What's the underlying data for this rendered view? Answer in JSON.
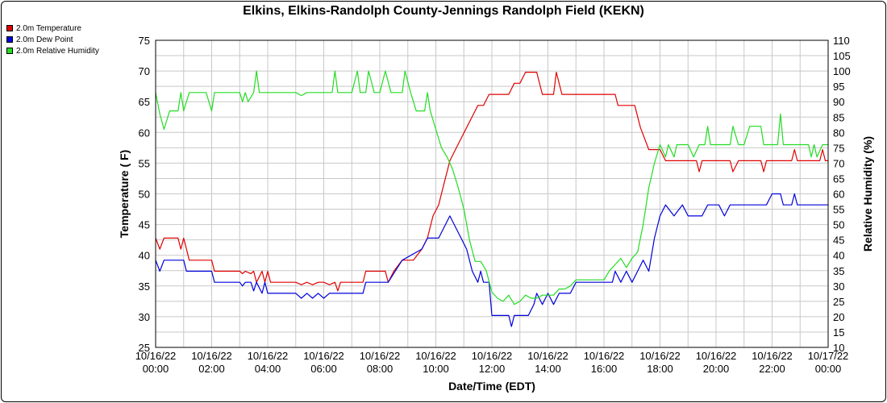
{
  "chart_data": {
    "type": "line",
    "title": "Elkins, Elkins-Randolph County-Jennings Randolph Field (KEKN)",
    "xlabel": "Date/Time (EDT)",
    "ylabel_left": "Temperature ( F)",
    "ylabel_right": "Relative Humidity (%)",
    "ylim_left": [
      25,
      75
    ],
    "ylim_right": [
      10,
      110
    ],
    "xlim_hours": [
      0,
      24
    ],
    "grid": true,
    "legend_position": "top-left",
    "left_ticks": [
      "25",
      "30",
      "35",
      "40",
      "45",
      "50",
      "55",
      "60",
      "65",
      "70",
      "75"
    ],
    "right_ticks": [
      "10",
      "15",
      "20",
      "25",
      "30",
      "35",
      "40",
      "45",
      "50",
      "55",
      "60",
      "65",
      "70",
      "75",
      "80",
      "85",
      "90",
      "95",
      "100",
      "105",
      "110"
    ],
    "x_ticks": [
      {
        "date": "10/16/22",
        "time": "00:00"
      },
      {
        "date": "10/16/22",
        "time": "02:00"
      },
      {
        "date": "10/16/22",
        "time": "04:00"
      },
      {
        "date": "10/16/22",
        "time": "06:00"
      },
      {
        "date": "10/16/22",
        "time": "08:00"
      },
      {
        "date": "10/16/22",
        "time": "10:00"
      },
      {
        "date": "10/16/22",
        "time": "12:00"
      },
      {
        "date": "10/16/22",
        "time": "14:00"
      },
      {
        "date": "10/16/22",
        "time": "16:00"
      },
      {
        "date": "10/16/22",
        "time": "18:00"
      },
      {
        "date": "10/16/22",
        "time": "20:00"
      },
      {
        "date": "10/16/22",
        "time": "22:00"
      },
      {
        "date": "10/17/22",
        "time": "00:00"
      }
    ],
    "series": [
      {
        "name": "2.0m Temperature",
        "color": "#e00000",
        "axis": "left",
        "points": [
          [
            0.0,
            42.8
          ],
          [
            0.15,
            41.0
          ],
          [
            0.3,
            42.8
          ],
          [
            0.8,
            42.8
          ],
          [
            0.9,
            41.0
          ],
          [
            1.0,
            42.8
          ],
          [
            1.2,
            39.2
          ],
          [
            2.0,
            39.2
          ],
          [
            2.1,
            37.4
          ],
          [
            3.0,
            37.4
          ],
          [
            3.1,
            37.0
          ],
          [
            3.2,
            37.4
          ],
          [
            3.4,
            37.0
          ],
          [
            3.5,
            37.4
          ],
          [
            3.6,
            35.6
          ],
          [
            3.8,
            37.4
          ],
          [
            3.9,
            35.6
          ],
          [
            4.0,
            37.4
          ],
          [
            4.1,
            35.6
          ],
          [
            5.0,
            35.6
          ],
          [
            5.2,
            35.2
          ],
          [
            5.4,
            35.6
          ],
          [
            5.6,
            35.2
          ],
          [
            5.8,
            35.6
          ],
          [
            6.0,
            35.6
          ],
          [
            6.2,
            35.2
          ],
          [
            6.4,
            35.6
          ],
          [
            6.5,
            34.2
          ],
          [
            6.6,
            35.6
          ],
          [
            7.4,
            35.6
          ],
          [
            7.5,
            37.4
          ],
          [
            8.2,
            37.4
          ],
          [
            8.3,
            35.6
          ],
          [
            8.5,
            37.4
          ],
          [
            8.8,
            39.2
          ],
          [
            9.2,
            39.2
          ],
          [
            9.5,
            41.0
          ],
          [
            9.7,
            42.8
          ],
          [
            9.9,
            46.4
          ],
          [
            10.1,
            48.2
          ],
          [
            10.3,
            51.8
          ],
          [
            10.5,
            55.4
          ],
          [
            10.7,
            57.2
          ],
          [
            10.9,
            59.0
          ],
          [
            11.1,
            60.8
          ],
          [
            11.3,
            62.6
          ],
          [
            11.5,
            64.4
          ],
          [
            11.7,
            64.4
          ],
          [
            11.9,
            66.2
          ],
          [
            12.6,
            66.2
          ],
          [
            12.8,
            68.0
          ],
          [
            13.0,
            68.0
          ],
          [
            13.2,
            69.8
          ],
          [
            13.6,
            69.8
          ],
          [
            13.8,
            66.2
          ],
          [
            14.2,
            66.2
          ],
          [
            14.3,
            69.8
          ],
          [
            14.5,
            66.2
          ],
          [
            16.4,
            66.2
          ],
          [
            16.5,
            64.4
          ],
          [
            17.1,
            64.4
          ],
          [
            17.3,
            60.8
          ],
          [
            17.6,
            57.2
          ],
          [
            18.0,
            57.2
          ],
          [
            18.2,
            55.4
          ],
          [
            19.3,
            55.4
          ],
          [
            19.4,
            53.6
          ],
          [
            19.5,
            55.4
          ],
          [
            20.1,
            55.4
          ],
          [
            20.5,
            55.4
          ],
          [
            20.6,
            53.6
          ],
          [
            20.8,
            55.4
          ],
          [
            21.6,
            55.4
          ],
          [
            21.7,
            53.6
          ],
          [
            21.8,
            55.4
          ],
          [
            22.7,
            55.4
          ],
          [
            22.8,
            57.2
          ],
          [
            22.9,
            55.4
          ],
          [
            23.7,
            55.4
          ],
          [
            23.8,
            57.2
          ],
          [
            23.9,
            55.4
          ],
          [
            24.0,
            55.4
          ]
        ]
      },
      {
        "name": "2.0m Dew Point",
        "color": "#0000dd",
        "axis": "left",
        "points": [
          [
            0.0,
            39.2
          ],
          [
            0.15,
            37.4
          ],
          [
            0.3,
            39.2
          ],
          [
            1.0,
            39.2
          ],
          [
            1.1,
            37.4
          ],
          [
            2.0,
            37.4
          ],
          [
            2.1,
            35.6
          ],
          [
            3.0,
            35.6
          ],
          [
            3.1,
            35.0
          ],
          [
            3.2,
            35.6
          ],
          [
            3.4,
            35.6
          ],
          [
            3.5,
            34.2
          ],
          [
            3.6,
            35.6
          ],
          [
            3.8,
            33.8
          ],
          [
            3.9,
            35.6
          ],
          [
            4.0,
            33.8
          ],
          [
            5.0,
            33.8
          ],
          [
            5.2,
            33.0
          ],
          [
            5.4,
            33.8
          ],
          [
            5.6,
            33.0
          ],
          [
            5.8,
            33.8
          ],
          [
            6.0,
            33.0
          ],
          [
            6.2,
            33.8
          ],
          [
            7.4,
            33.8
          ],
          [
            7.5,
            35.6
          ],
          [
            8.3,
            35.6
          ],
          [
            8.8,
            39.2
          ],
          [
            9.5,
            41.0
          ],
          [
            9.7,
            42.8
          ],
          [
            10.1,
            42.8
          ],
          [
            10.3,
            44.6
          ],
          [
            10.5,
            46.4
          ],
          [
            10.7,
            44.6
          ],
          [
            10.9,
            42.8
          ],
          [
            11.1,
            41.0
          ],
          [
            11.3,
            37.4
          ],
          [
            11.5,
            35.6
          ],
          [
            11.6,
            37.4
          ],
          [
            11.7,
            35.6
          ],
          [
            11.9,
            35.6
          ],
          [
            12.0,
            30.2
          ],
          [
            12.6,
            30.2
          ],
          [
            12.7,
            28.4
          ],
          [
            12.8,
            30.2
          ],
          [
            13.3,
            30.2
          ],
          [
            13.5,
            32.0
          ],
          [
            13.6,
            33.8
          ],
          [
            13.8,
            32.0
          ],
          [
            14.0,
            33.8
          ],
          [
            14.2,
            32.0
          ],
          [
            14.4,
            33.8
          ],
          [
            14.8,
            33.8
          ],
          [
            15.0,
            35.6
          ],
          [
            16.3,
            35.6
          ],
          [
            16.4,
            37.4
          ],
          [
            16.6,
            35.6
          ],
          [
            16.8,
            37.4
          ],
          [
            17.0,
            35.6
          ],
          [
            17.2,
            37.4
          ],
          [
            17.4,
            39.2
          ],
          [
            17.6,
            37.4
          ],
          [
            17.8,
            42.8
          ],
          [
            18.0,
            46.4
          ],
          [
            18.2,
            48.2
          ],
          [
            18.5,
            46.4
          ],
          [
            18.8,
            48.2
          ],
          [
            19.0,
            46.4
          ],
          [
            19.5,
            46.4
          ],
          [
            19.7,
            48.2
          ],
          [
            20.1,
            48.2
          ],
          [
            20.3,
            46.4
          ],
          [
            20.5,
            48.2
          ],
          [
            21.8,
            48.2
          ],
          [
            22.0,
            50.0
          ],
          [
            22.3,
            50.0
          ],
          [
            22.4,
            48.2
          ],
          [
            22.7,
            48.2
          ],
          [
            22.8,
            50.0
          ],
          [
            22.9,
            48.2
          ],
          [
            24.0,
            48.2
          ]
        ]
      },
      {
        "name": "2.0m Relative Humidity",
        "color": "#22dd22",
        "axis": "right",
        "points": [
          [
            0.0,
            93
          ],
          [
            0.15,
            86
          ],
          [
            0.3,
            81
          ],
          [
            0.5,
            87
          ],
          [
            0.8,
            87
          ],
          [
            0.9,
            93
          ],
          [
            1.0,
            87
          ],
          [
            1.2,
            93
          ],
          [
            1.8,
            93
          ],
          [
            2.0,
            87
          ],
          [
            2.1,
            93
          ],
          [
            3.0,
            93
          ],
          [
            3.1,
            90
          ],
          [
            3.2,
            93
          ],
          [
            3.3,
            90
          ],
          [
            3.5,
            93
          ],
          [
            3.6,
            100
          ],
          [
            3.7,
            93
          ],
          [
            4.2,
            93
          ],
          [
            5.0,
            93
          ],
          [
            5.2,
            92
          ],
          [
            5.4,
            93
          ],
          [
            6.3,
            93
          ],
          [
            6.4,
            100
          ],
          [
            6.5,
            93
          ],
          [
            7.0,
            93
          ],
          [
            7.2,
            100
          ],
          [
            7.3,
            93
          ],
          [
            7.5,
            93
          ],
          [
            7.6,
            100
          ],
          [
            7.8,
            93
          ],
          [
            8.0,
            93
          ],
          [
            8.2,
            100
          ],
          [
            8.4,
            93
          ],
          [
            8.8,
            93
          ],
          [
            8.9,
            100
          ],
          [
            9.1,
            93
          ],
          [
            9.3,
            87
          ],
          [
            9.6,
            87
          ],
          [
            9.7,
            93
          ],
          [
            9.8,
            87
          ],
          [
            10.0,
            81
          ],
          [
            10.2,
            75
          ],
          [
            10.4,
            72
          ],
          [
            10.5,
            70
          ],
          [
            10.6,
            68
          ],
          [
            10.8,
            62
          ],
          [
            11.0,
            55
          ],
          [
            11.2,
            45
          ],
          [
            11.4,
            38
          ],
          [
            11.6,
            38
          ],
          [
            11.8,
            35
          ],
          [
            12.0,
            28
          ],
          [
            12.2,
            26
          ],
          [
            12.4,
            25
          ],
          [
            12.6,
            27
          ],
          [
            12.8,
            24
          ],
          [
            13.0,
            25
          ],
          [
            13.2,
            27
          ],
          [
            13.4,
            26
          ],
          [
            13.6,
            26
          ],
          [
            13.8,
            27
          ],
          [
            14.2,
            27
          ],
          [
            14.4,
            29
          ],
          [
            14.6,
            29
          ],
          [
            14.8,
            30
          ],
          [
            15.0,
            32
          ],
          [
            16.0,
            32
          ],
          [
            16.2,
            35
          ],
          [
            16.4,
            37
          ],
          [
            16.6,
            39
          ],
          [
            16.8,
            36
          ],
          [
            17.0,
            39
          ],
          [
            17.2,
            41
          ],
          [
            17.4,
            50
          ],
          [
            17.6,
            62
          ],
          [
            17.8,
            70
          ],
          [
            18.0,
            76
          ],
          [
            18.2,
            72
          ],
          [
            18.3,
            76
          ],
          [
            18.5,
            72
          ],
          [
            18.6,
            76
          ],
          [
            18.8,
            76
          ],
          [
            19.0,
            76
          ],
          [
            19.2,
            72
          ],
          [
            19.4,
            76
          ],
          [
            19.6,
            76
          ],
          [
            19.7,
            82
          ],
          [
            19.8,
            76
          ],
          [
            20.1,
            76
          ],
          [
            20.5,
            76
          ],
          [
            20.6,
            82
          ],
          [
            20.8,
            76
          ],
          [
            21.0,
            76
          ],
          [
            21.2,
            82
          ],
          [
            21.6,
            82
          ],
          [
            21.7,
            76
          ],
          [
            22.2,
            76
          ],
          [
            22.3,
            86
          ],
          [
            22.4,
            76
          ],
          [
            23.0,
            76
          ],
          [
            23.3,
            76
          ],
          [
            23.4,
            72
          ],
          [
            23.5,
            76
          ],
          [
            23.6,
            72
          ],
          [
            23.8,
            76
          ],
          [
            24.0,
            76
          ]
        ]
      }
    ]
  }
}
